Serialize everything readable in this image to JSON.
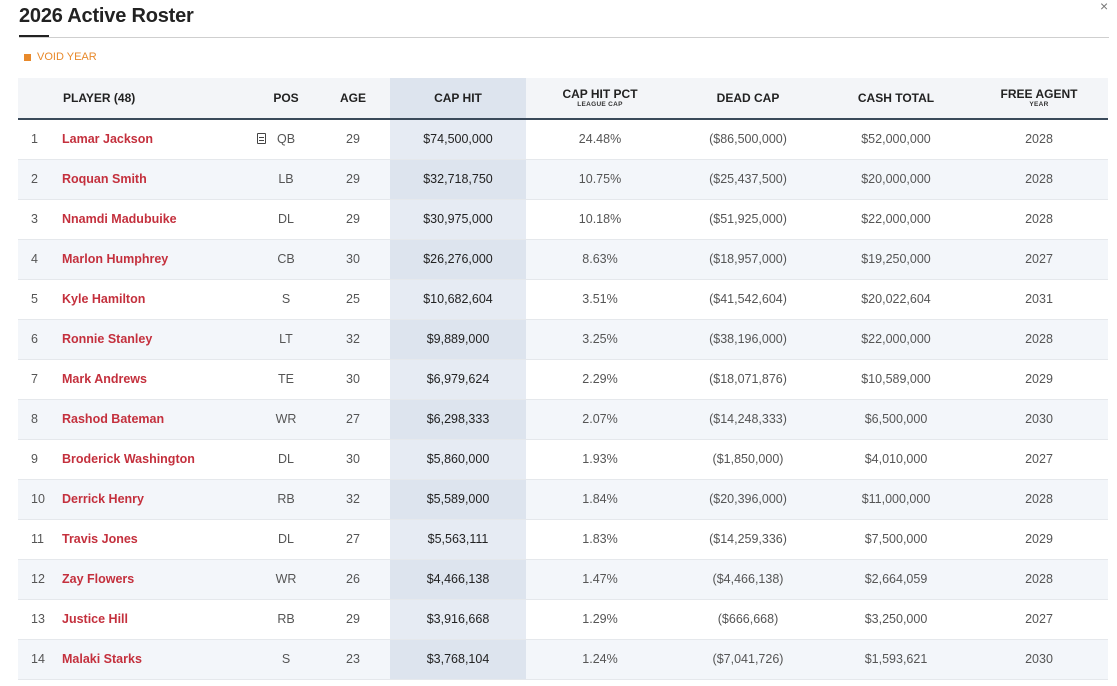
{
  "title": "2026 Active Roster",
  "close_symbol": "×",
  "legend": {
    "label": "VOID YEAR",
    "color": "#e8892b"
  },
  "columns": {
    "player": "PLAYER (48)",
    "pos": "POS",
    "age": "AGE",
    "cap_hit": "CAP HIT",
    "cap_hit_pct": "CAP HIT PCT",
    "cap_hit_pct_sub": "LEAGUE CAP",
    "dead_cap": "DEAD CAP",
    "cash_total": "CASH TOTAL",
    "free_agent": "FREE AGENT",
    "free_agent_sub": "YEAR"
  },
  "player_link_color": "#c4303d",
  "rows": [
    {
      "rank": "1",
      "name": "Lamar Jackson",
      "pos": "QB",
      "age": "29",
      "cap_hit": "$74,500,000",
      "pct": "24.48%",
      "dead_cap": "($86,500,000)",
      "cash": "$52,000,000",
      "fa": "2028",
      "icon": "note-icon"
    },
    {
      "rank": "2",
      "name": "Roquan Smith",
      "pos": "LB",
      "age": "29",
      "cap_hit": "$32,718,750",
      "pct": "10.75%",
      "dead_cap": "($25,437,500)",
      "cash": "$20,000,000",
      "fa": "2028"
    },
    {
      "rank": "3",
      "name": "Nnamdi Madubuike",
      "pos": "DL",
      "age": "29",
      "cap_hit": "$30,975,000",
      "pct": "10.18%",
      "dead_cap": "($51,925,000)",
      "cash": "$22,000,000",
      "fa": "2028"
    },
    {
      "rank": "4",
      "name": "Marlon Humphrey",
      "pos": "CB",
      "age": "30",
      "cap_hit": "$26,276,000",
      "pct": "8.63%",
      "dead_cap": "($18,957,000)",
      "cash": "$19,250,000",
      "fa": "2027"
    },
    {
      "rank": "5",
      "name": "Kyle Hamilton",
      "pos": "S",
      "age": "25",
      "cap_hit": "$10,682,604",
      "pct": "3.51%",
      "dead_cap": "($41,542,604)",
      "cash": "$20,022,604",
      "fa": "2031"
    },
    {
      "rank": "6",
      "name": "Ronnie Stanley",
      "pos": "LT",
      "age": "32",
      "cap_hit": "$9,889,000",
      "pct": "3.25%",
      "dead_cap": "($38,196,000)",
      "cash": "$22,000,000",
      "fa": "2028"
    },
    {
      "rank": "7",
      "name": "Mark Andrews",
      "pos": "TE",
      "age": "30",
      "cap_hit": "$6,979,624",
      "pct": "2.29%",
      "dead_cap": "($18,071,876)",
      "cash": "$10,589,000",
      "fa": "2029"
    },
    {
      "rank": "8",
      "name": "Rashod Bateman",
      "pos": "WR",
      "age": "27",
      "cap_hit": "$6,298,333",
      "pct": "2.07%",
      "dead_cap": "($14,248,333)",
      "cash": "$6,500,000",
      "fa": "2030"
    },
    {
      "rank": "9",
      "name": "Broderick Washington",
      "pos": "DL",
      "age": "30",
      "cap_hit": "$5,860,000",
      "pct": "1.93%",
      "dead_cap": "($1,850,000)",
      "cash": "$4,010,000",
      "fa": "2027"
    },
    {
      "rank": "10",
      "name": "Derrick Henry",
      "pos": "RB",
      "age": "32",
      "cap_hit": "$5,589,000",
      "pct": "1.84%",
      "dead_cap": "($20,396,000)",
      "cash": "$11,000,000",
      "fa": "2028"
    },
    {
      "rank": "11",
      "name": "Travis Jones",
      "pos": "DL",
      "age": "27",
      "cap_hit": "$5,563,111",
      "pct": "1.83%",
      "dead_cap": "($14,259,336)",
      "cash": "$7,500,000",
      "fa": "2029"
    },
    {
      "rank": "12",
      "name": "Zay Flowers",
      "pos": "WR",
      "age": "26",
      "cap_hit": "$4,466,138",
      "pct": "1.47%",
      "dead_cap": "($4,466,138)",
      "cash": "$2,664,059",
      "fa": "2028"
    },
    {
      "rank": "13",
      "name": "Justice Hill",
      "pos": "RB",
      "age": "29",
      "cap_hit": "$3,916,668",
      "pct": "1.29%",
      "dead_cap": "($666,668)",
      "cash": "$3,250,000",
      "fa": "2027"
    },
    {
      "rank": "14",
      "name": "Malaki Starks",
      "pos": "S",
      "age": "23",
      "cap_hit": "$3,768,104",
      "pct": "1.24%",
      "dead_cap": "($7,041,726)",
      "cash": "$1,593,621",
      "fa": "2030"
    }
  ]
}
